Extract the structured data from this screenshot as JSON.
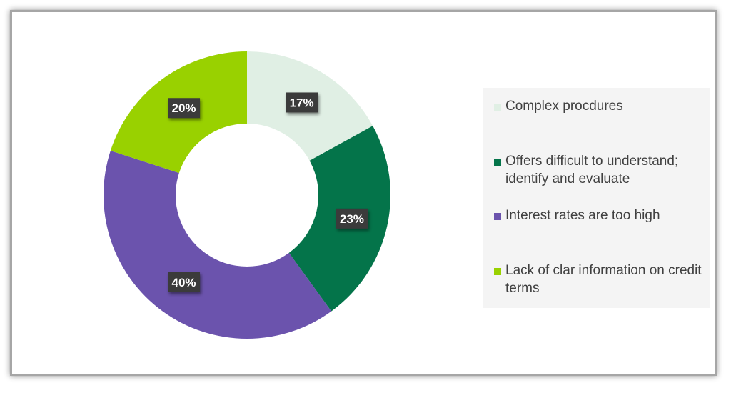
{
  "chart_data": {
    "type": "pie",
    "donut": true,
    "title": "",
    "categories": [
      "Complex procdures",
      "Offers difficult to understand; identify and evaluate",
      "Interest rates are too high",
      "Lack of clar information on credit terms"
    ],
    "values": [
      17,
      23,
      40,
      20
    ],
    "value_labels": [
      "17%",
      "23%",
      "40%",
      "20%"
    ],
    "colors": [
      "#e0efe4",
      "#04744a",
      "#6b53ad",
      "#99d100"
    ],
    "legend_position": "right"
  }
}
